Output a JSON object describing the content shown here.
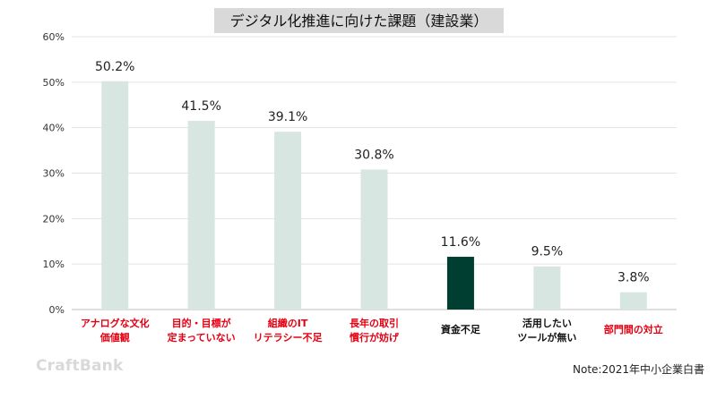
{
  "chart_data": {
    "type": "bar",
    "title": "デジタル化推進に向けた課題（建設業）",
    "categories": [
      [
        "アナログな文化",
        "価値観"
      ],
      [
        "目的・目標が",
        "定まっていない"
      ],
      [
        "組織のIT",
        "リテラシー不足"
      ],
      [
        "長年の取引",
        "慣行が妨げ"
      ],
      [
        "資金不足"
      ],
      [
        "活用したい",
        "ツールが無い"
      ],
      [
        "部門間の対立"
      ]
    ],
    "values": [
      50.2,
      41.5,
      39.1,
      30.8,
      11.6,
      9.5,
      3.8
    ],
    "value_labels": [
      "50.2%",
      "41.5%",
      "39.1%",
      "30.8%",
      "11.6%",
      "9.5%",
      "3.8%"
    ],
    "yticks": [
      "0%",
      "10%",
      "20%",
      "30%",
      "40%",
      "50%",
      "60%"
    ],
    "ylim": [
      0,
      60
    ],
    "grid": true,
    "colors": {
      "bar_default": "#d8e6e1",
      "bar_highlight": "#003e31",
      "label_red": "#e60012",
      "label_black": "#111111",
      "title_bg": "#d9d9d9"
    },
    "highlight_index": 4,
    "label_colors": [
      "red",
      "red",
      "red",
      "red",
      "black",
      "black",
      "red"
    ]
  },
  "watermark": "CraftBank",
  "source_note": "Note:2021年中小企業白書"
}
